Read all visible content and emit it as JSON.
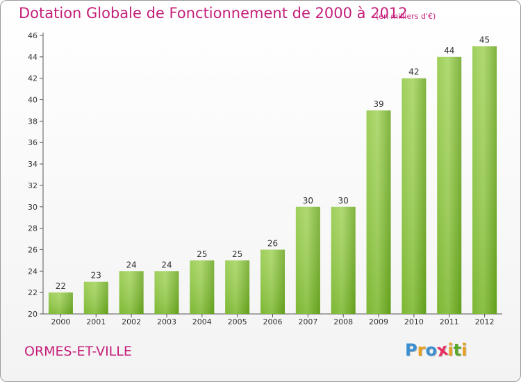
{
  "chart_data": {
    "type": "bar",
    "title": "Dotation Globale de Fonctionnement de 2000 à 2012",
    "subtitle": "(en milliers d'€)",
    "categories": [
      "2000",
      "2001",
      "2002",
      "2003",
      "2004",
      "2005",
      "2006",
      "2007",
      "2008",
      "2009",
      "2010",
      "2011",
      "2012"
    ],
    "values": [
      22,
      23,
      24,
      24,
      25,
      25,
      26,
      30,
      30,
      39,
      42,
      44,
      45
    ],
    "ylim": [
      20,
      46
    ],
    "yticks": [
      20,
      22,
      24,
      26,
      28,
      30,
      32,
      34,
      36,
      38,
      40,
      42,
      44,
      46
    ],
    "grid": false,
    "bar_color": "#7cbf2f",
    "data_labels": true
  },
  "commune": "ORMES-ET-VILLE",
  "logo": {
    "letters": [
      "P",
      "r",
      "o",
      "x",
      "i",
      "t",
      "i"
    ],
    "colors": [
      "#3a8fd3",
      "#e8a020",
      "#3a8fd3",
      "#e83060",
      "#e8a020",
      "#5aa82a",
      "#e8a020"
    ]
  }
}
